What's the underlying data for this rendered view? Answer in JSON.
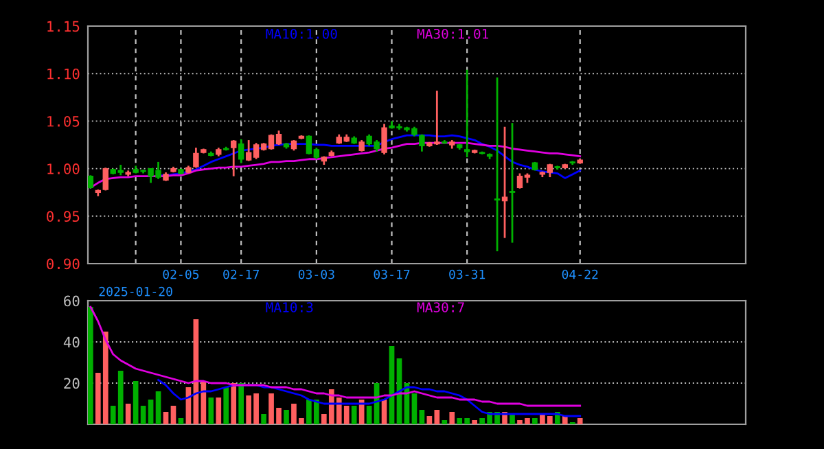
{
  "chart_data": [
    {
      "type": "candlestick",
      "categories": [
        null,
        null,
        null,
        null,
        null,
        null,
        "2025-01-20",
        null,
        null,
        null,
        null,
        null,
        "02-05",
        null,
        null,
        null,
        null,
        null,
        null,
        null,
        "02-17",
        null,
        null,
        null,
        null,
        null,
        null,
        null,
        null,
        null,
        "03-03",
        null,
        null,
        null,
        null,
        null,
        null,
        null,
        null,
        null,
        "03-17",
        null,
        null,
        null,
        null,
        null,
        null,
        null,
        null,
        null,
        "03-31",
        null,
        null,
        null,
        null,
        null,
        null,
        null,
        null,
        null,
        null,
        null,
        null,
        null,
        null,
        "04-22"
      ],
      "ohlc": [
        [
          0.992,
          0.993,
          0.979,
          0.98
        ],
        [
          0.975,
          0.978,
          0.971,
          0.977
        ],
        [
          0.978,
          1.001,
          0.977,
          1.0
        ],
        [
          0.999,
          1.0,
          0.994,
          0.995
        ],
        [
          0.998,
          1.004,
          0.993,
          0.996
        ],
        [
          0.994,
          0.998,
          0.992,
          0.996
        ],
        [
          0.999,
          1.003,
          0.995,
          0.996
        ],
        [
          0.998,
          0.999,
          0.995,
          0.997
        ],
        [
          1.0,
          1.0,
          0.985,
          0.992
        ],
        [
          0.998,
          1.007,
          0.989,
          0.991
        ],
        [
          0.988,
          0.996,
          0.987,
          0.994
        ],
        [
          0.997,
          1.002,
          0.996,
          1.0
        ],
        [
          0.999,
          1.0,
          0.994,
          0.995
        ],
        [
          0.996,
          1.003,
          0.995,
          1.001
        ],
        [
          1.002,
          1.022,
          1.001,
          1.016
        ],
        [
          1.017,
          1.021,
          1.016,
          1.02
        ],
        [
          1.016,
          1.018,
          1.013,
          1.014
        ],
        [
          1.015,
          1.022,
          1.013,
          1.02
        ],
        [
          1.021,
          1.023,
          1.019,
          1.02
        ],
        [
          1.022,
          1.03,
          0.992,
          1.029
        ],
        [
          1.026,
          1.031,
          1.006,
          1.01
        ],
        [
          1.009,
          1.03,
          1.008,
          1.017
        ],
        [
          1.012,
          1.027,
          1.01,
          1.025
        ],
        [
          1.02,
          1.027,
          1.019,
          1.026
        ],
        [
          1.021,
          1.036,
          1.02,
          1.035
        ],
        [
          1.026,
          1.04,
          1.025,
          1.036
        ],
        [
          1.026,
          1.027,
          1.021,
          1.023
        ],
        [
          1.021,
          1.03,
          1.019,
          1.029
        ],
        [
          1.032,
          1.035,
          1.031,
          1.034
        ],
        [
          1.034,
          1.035,
          1.015,
          1.016
        ],
        [
          1.02,
          1.022,
          1.01,
          1.012
        ],
        [
          1.008,
          1.013,
          1.004,
          1.012
        ],
        [
          1.014,
          1.019,
          1.013,
          1.017
        ],
        [
          1.027,
          1.036,
          1.026,
          1.033
        ],
        [
          1.029,
          1.036,
          1.028,
          1.033
        ],
        [
          1.032,
          1.034,
          1.026,
          1.027
        ],
        [
          1.019,
          1.03,
          1.018,
          1.028
        ],
        [
          1.034,
          1.036,
          1.024,
          1.026
        ],
        [
          1.028,
          1.03,
          1.018,
          1.021
        ],
        [
          1.017,
          1.047,
          1.015,
          1.043
        ],
        [
          1.045,
          1.05,
          1.042,
          1.043
        ],
        [
          1.044,
          1.047,
          1.041,
          1.043
        ],
        [
          1.043,
          1.044,
          1.039,
          1.041
        ],
        [
          1.042,
          1.044,
          1.034,
          1.036
        ],
        [
          1.035,
          1.036,
          1.018,
          1.024
        ],
        [
          1.024,
          1.028,
          1.023,
          1.027
        ],
        [
          1.026,
          1.082,
          1.025,
          1.028
        ],
        [
          1.028,
          1.03,
          1.026,
          1.027
        ],
        [
          1.025,
          1.03,
          1.021,
          1.028
        ],
        [
          1.025,
          1.026,
          1.02,
          1.022
        ],
        [
          1.02,
          1.104,
          1.012,
          1.018
        ],
        [
          1.017,
          1.02,
          1.016,
          1.019
        ],
        [
          1.017,
          1.018,
          1.015,
          1.016
        ],
        [
          1.015,
          1.016,
          1.01,
          1.013
        ],
        [
          0.968,
          1.096,
          0.913,
          0.967
        ],
        [
          0.966,
          1.044,
          0.927,
          0.97
        ],
        [
          0.976,
          1.048,
          0.922,
          0.975
        ],
        [
          0.98,
          0.995,
          0.979,
          0.992
        ],
        [
          0.991,
          0.995,
          0.985,
          0.993
        ],
        [
          1.006,
          1.007,
          0.998,
          0.999
        ],
        [
          0.994,
          0.997,
          0.991,
          0.996
        ],
        [
          0.996,
          1.005,
          0.991,
          1.004
        ],
        [
          1.002,
          1.003,
          0.999,
          1.001
        ],
        [
          1.001,
          1.005,
          1.0,
          1.004
        ],
        [
          1.007,
          1.008,
          1.004,
          1.006
        ],
        [
          1.006,
          1.01,
          1.005,
          1.009
        ]
      ],
      "colors": [
        "#00b000",
        "#ff6060",
        "#ff6060",
        "#00b000",
        "#00b000",
        "#ff6060",
        "#00b000",
        "#00b000",
        "#00b000",
        "#00b000",
        "#ff6060",
        "#ff6060",
        "#00b000",
        "#ff6060",
        "#ff6060",
        "#ff6060",
        "#00b000",
        "#ff6060",
        "#00b000",
        "#ff6060",
        "#00b000",
        "#ff6060",
        "#ff6060",
        "#ff6060",
        "#ff6060",
        "#ff6060",
        "#00b000",
        "#ff6060",
        "#ff6060",
        "#00b000",
        "#00b000",
        "#ff6060",
        "#ff6060",
        "#ff6060",
        "#ff6060",
        "#00b000",
        "#ff6060",
        "#00b000",
        "#00b000",
        "#ff6060",
        "#00b000",
        "#00b000",
        "#00b000",
        "#00b000",
        "#00b000",
        "#ff6060",
        "#ff6060",
        "#00b000",
        "#ff6060",
        "#00b000",
        "#00b000",
        "#ff6060",
        "#00b000",
        "#00b000",
        "#00b000",
        "#ff6060",
        "#00b000",
        "#ff6060",
        "#ff6060",
        "#00b000",
        "#ff6060",
        "#ff6060",
        "#00b000",
        "#ff6060",
        "#00b000",
        "#ff6060"
      ],
      "series": [
        {
          "type": "line",
          "color": "#0000ff",
          "values": [
            null,
            null,
            null,
            null,
            null,
            null,
            null,
            null,
            null,
            0.993,
            0.993,
            0.994,
            0.995,
            0.997,
            0.999,
            1.003,
            1.007,
            1.01,
            1.013,
            1.016,
            1.019,
            1.02,
            1.021,
            1.022,
            1.024,
            1.025,
            1.026,
            1.026,
            1.026,
            1.026,
            1.025,
            1.025,
            1.024,
            1.024,
            1.024,
            1.024,
            1.024,
            1.024,
            1.024,
            1.028,
            1.031,
            1.033,
            1.035,
            1.035,
            1.035,
            1.035,
            1.034,
            1.034,
            1.035,
            1.034,
            1.032,
            1.03,
            1.026,
            1.023,
            1.019,
            1.013,
            1.007,
            1.004,
            1.002,
            0.999,
            0.997,
            0.996,
            0.995,
            0.99,
            0.994,
            0.998
          ]
        },
        {
          "type": "line",
          "color": "#e000e0",
          "values": [
            0.98,
            0.985,
            0.989,
            0.99,
            0.991,
            0.991,
            0.992,
            0.992,
            0.992,
            0.992,
            0.992,
            0.993,
            0.993,
            0.995,
            0.998,
            0.999,
            1.0,
            1.001,
            1.001,
            1.002,
            1.002,
            1.003,
            1.004,
            1.005,
            1.007,
            1.007,
            1.008,
            1.008,
            1.009,
            1.01,
            1.01,
            1.011,
            1.012,
            1.013,
            1.014,
            1.015,
            1.016,
            1.017,
            1.019,
            1.021,
            1.022,
            1.024,
            1.026,
            1.026,
            1.027,
            1.027,
            1.027,
            1.027,
            1.027,
            1.027,
            1.027,
            1.026,
            1.025,
            1.024,
            1.024,
            1.023,
            1.021,
            1.02,
            1.019,
            1.018,
            1.017,
            1.016,
            1.016,
            1.015,
            1.014,
            1.013
          ]
        }
      ],
      "annotations": [
        "MA10:1.00",
        "MA30:1.01"
      ],
      "ylim": [
        0.9,
        1.15
      ],
      "yticks": [
        {
          "value": 0.9,
          "label": "0.90"
        },
        0.95,
        {
          "value": 1.0,
          "label": "1.00"
        },
        1.05,
        {
          "value": 1.1,
          "label": "1.10"
        },
        1.15
      ],
      "grid": true
    },
    {
      "type": "bar",
      "categories": [
        null,
        null,
        null,
        null,
        null,
        null,
        null,
        null,
        null,
        null,
        null,
        null,
        null,
        null,
        null,
        null,
        null,
        null,
        null,
        null,
        null,
        null,
        null,
        null,
        null,
        null,
        null,
        null,
        null,
        null,
        null,
        null,
        null,
        null,
        null,
        null,
        null,
        null,
        null,
        null,
        null,
        null,
        null,
        null,
        null,
        null,
        null,
        null,
        null,
        null,
        null,
        null,
        null,
        null,
        null,
        null,
        null,
        null,
        null,
        null,
        null,
        null,
        null,
        null,
        null,
        null
      ],
      "values": [
        57,
        25,
        45,
        9,
        26,
        10,
        21,
        9,
        12,
        16,
        6,
        9,
        3,
        18,
        51,
        21,
        13,
        13,
        18,
        20,
        20,
        14,
        15,
        5,
        15,
        8,
        7,
        10,
        3,
        12,
        12,
        5,
        17,
        13,
        9,
        9,
        12,
        9,
        20,
        12,
        38,
        32,
        20,
        15,
        7,
        4,
        7,
        2,
        6,
        3,
        3,
        2,
        3,
        6,
        6,
        6,
        5,
        2,
        3,
        3,
        5,
        4,
        6,
        4,
        1,
        3
      ],
      "colors": [
        "#00b000",
        "#ff6060",
        "#ff6060",
        "#00b000",
        "#00b000",
        "#ff6060",
        "#00b000",
        "#00b000",
        "#00b000",
        "#00b000",
        "#ff6060",
        "#ff6060",
        "#00b000",
        "#ff6060",
        "#ff6060",
        "#ff6060",
        "#00b000",
        "#ff6060",
        "#00b000",
        "#ff6060",
        "#00b000",
        "#ff6060",
        "#ff6060",
        "#00b000",
        "#ff6060",
        "#ff6060",
        "#00b000",
        "#ff6060",
        "#ff6060",
        "#00b000",
        "#00b000",
        "#ff6060",
        "#ff6060",
        "#ff6060",
        "#ff6060",
        "#00b000",
        "#ff6060",
        "#00b000",
        "#00b000",
        "#ff6060",
        "#00b000",
        "#00b000",
        "#00b000",
        "#00b000",
        "#00b000",
        "#ff6060",
        "#ff6060",
        "#00b000",
        "#ff6060",
        "#00b000",
        "#00b000",
        "#ff6060",
        "#00b000",
        "#00b000",
        "#00b000",
        "#ff6060",
        "#00b000",
        "#ff6060",
        "#ff6060",
        "#00b000",
        "#ff6060",
        "#ff6060",
        "#00b000",
        "#ff6060",
        "#00b000",
        "#ff6060"
      ],
      "series": [
        {
          "type": "line",
          "color": "#0000ff",
          "values": [
            null,
            null,
            null,
            null,
            null,
            null,
            null,
            null,
            null,
            21.5,
            19,
            15,
            12,
            13,
            15,
            16,
            16,
            17,
            18,
            19,
            19,
            19,
            19,
            18,
            18,
            17,
            16,
            15,
            14,
            12,
            11,
            10,
            10,
            10,
            10,
            10,
            10,
            10,
            11,
            12,
            14,
            16,
            18,
            18,
            17,
            17,
            16,
            16,
            15,
            14,
            12,
            9,
            6,
            5,
            5,
            5,
            5,
            5,
            5,
            5,
            5,
            5,
            5,
            4,
            4,
            4
          ]
        },
        {
          "type": "line",
          "color": "#e000e0",
          "values": [
            57,
            50,
            41,
            34,
            31,
            29,
            27,
            26,
            25,
            24,
            23,
            22,
            21,
            20,
            21,
            21,
            20,
            20,
            20,
            19,
            19,
            19,
            19,
            19,
            18,
            18,
            18,
            17,
            17,
            16,
            15,
            15,
            14,
            14,
            13,
            13,
            13,
            13,
            13,
            14,
            14,
            15,
            15,
            16,
            15,
            14,
            13,
            13,
            13,
            12,
            12,
            12,
            11,
            11,
            10,
            10,
            10,
            10,
            9,
            9,
            9,
            9,
            9,
            9,
            9,
            9
          ]
        }
      ],
      "annotations": [
        "MA10:3",
        "MA30:7"
      ],
      "ylim": [
        0,
        60
      ],
      "yticks": [
        20,
        40,
        60
      ],
      "grid": true,
      "tick_labels": "y"
    }
  ]
}
